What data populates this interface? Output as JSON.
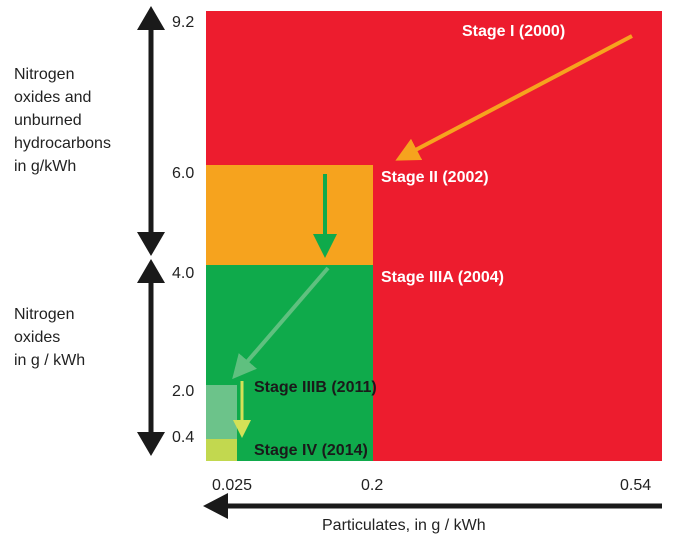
{
  "left_labels": {
    "nox_hc": [
      "Nitrogen",
      "oxides and",
      "unburned",
      "hydrocarbons",
      "in g/kWh"
    ],
    "nox": [
      "Nitrogen",
      "oxides",
      "in g / kWh"
    ]
  },
  "y_ticks": [
    "9.2",
    "6.0",
    "4.0",
    "2.0",
    "0.4"
  ],
  "x_ticks": [
    "0.025",
    "0.2",
    "0.54"
  ],
  "x_axis_label": "Particulates, in g / kWh",
  "stages": {
    "stage1": "Stage I (2000)",
    "stage2": "Stage II (2002)",
    "stage3a": "Stage IIIA (2004)",
    "stage3b": "Stage IIIB (2011)",
    "stage4": "Stage IV (2014)"
  },
  "colors": {
    "stage1": "#ED1C2E",
    "stage2": "#F6A31E",
    "stage3a": "#0FAA4B",
    "stage3b": "#6CC38A",
    "stage4": "#C2D84F"
  }
}
